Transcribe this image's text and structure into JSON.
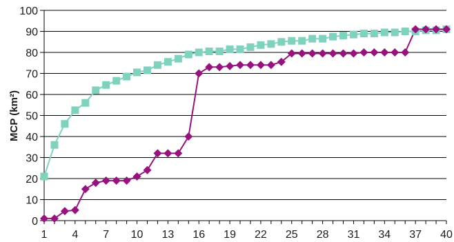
{
  "chart_data": {
    "type": "line",
    "title": "",
    "xlabel": "",
    "ylabel": "MCP (km²)",
    "ylim": [
      0,
      100
    ],
    "yticks": [
      0,
      10,
      20,
      30,
      40,
      50,
      60,
      70,
      80,
      90,
      100
    ],
    "xlim": [
      1,
      40
    ],
    "xticks": [
      1,
      4,
      7,
      10,
      13,
      16,
      19,
      22,
      25,
      28,
      31,
      34,
      37,
      40
    ],
    "grid": true,
    "legend": "none",
    "series": [
      {
        "color": "#7fd3be",
        "marker": "square",
        "x": [
          1,
          2,
          3,
          4,
          5,
          6,
          7,
          8,
          9,
          10,
          11,
          12,
          13,
          14,
          15,
          16,
          17,
          18,
          19,
          20,
          21,
          22,
          23,
          24,
          25,
          26,
          27,
          28,
          29,
          30,
          31,
          32,
          33,
          34,
          35,
          36,
          37,
          38,
          39,
          40
        ],
        "y": [
          21,
          36,
          46,
          52.5,
          56,
          62,
          64.5,
          66.5,
          68.5,
          70.5,
          71.5,
          74,
          75.5,
          77,
          79,
          80,
          80.5,
          80.5,
          81.5,
          81.5,
          82.5,
          83.5,
          84,
          85,
          85.5,
          85.5,
          86.5,
          86.5,
          87.5,
          88,
          88.5,
          89,
          89,
          89.5,
          89.5,
          90,
          90,
          90.5,
          90.5,
          91
        ]
      },
      {
        "color": "#97127e",
        "marker": "diamond",
        "x": [
          1,
          2,
          3,
          4,
          5,
          6,
          7,
          8,
          9,
          10,
          11,
          12,
          13,
          14,
          15,
          16,
          17,
          18,
          19,
          20,
          21,
          22,
          23,
          24,
          25,
          26,
          27,
          28,
          29,
          30,
          31,
          32,
          33,
          34,
          35,
          36,
          37,
          38,
          39,
          40
        ],
        "y": [
          1,
          1,
          4.5,
          5,
          15,
          18,
          19,
          19,
          19,
          21,
          24,
          32,
          32,
          32,
          40,
          70,
          73,
          73,
          73.5,
          74,
          74,
          74,
          74,
          75.5,
          79.5,
          79.5,
          79.5,
          79.5,
          79.5,
          79.5,
          79.5,
          80,
          80,
          80,
          80,
          80,
          91,
          91,
          91,
          91
        ]
      }
    ]
  }
}
